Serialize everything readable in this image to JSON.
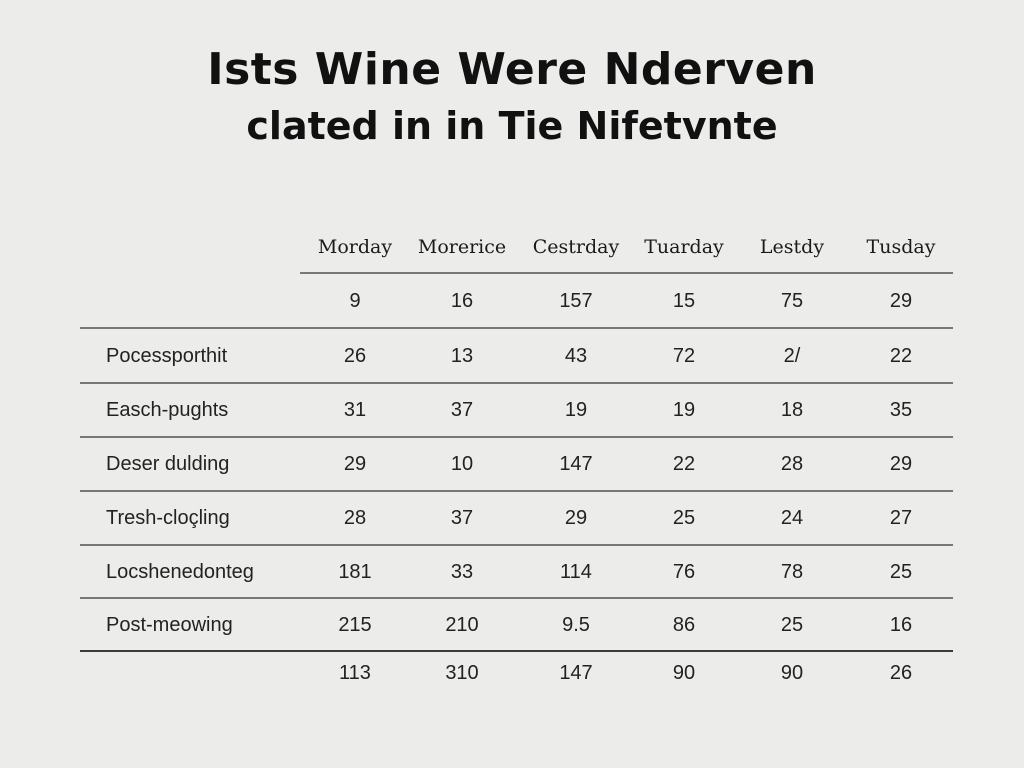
{
  "chart_data": {
    "type": "table",
    "title_lines": [
      "Ists Wine Were Nderven",
      "clated in in Tie Nifetvnte"
    ],
    "columns": [
      "Morday",
      "Morerice",
      "Cestrday",
      "Tuarday",
      "Lestdy",
      "Tusday"
    ],
    "rows": [
      {
        "label": "",
        "values": [
          "9",
          "16",
          "157",
          "15",
          "75",
          "29"
        ]
      },
      {
        "label": "Pocessporthit",
        "values": [
          "26",
          "13",
          "43",
          "72",
          "2/",
          "22"
        ]
      },
      {
        "label": "Easch-pughts",
        "values": [
          "31",
          "37",
          "19",
          "19",
          "18",
          "35"
        ]
      },
      {
        "label": "Deser dulding",
        "values": [
          "29",
          "10",
          "147",
          "22",
          "28",
          "29"
        ]
      },
      {
        "label": "Tresh-cloçling",
        "values": [
          "28",
          "37",
          "29",
          "25",
          "24",
          "27"
        ]
      },
      {
        "label": "Locshenedonteg",
        "values": [
          "181",
          "33",
          "114",
          "76",
          "78",
          "25"
        ]
      },
      {
        "label": "Post-meowing",
        "values": [
          "215",
          "210",
          "9.5",
          "86",
          "25",
          "16"
        ]
      },
      {
        "label": "",
        "values": [
          "113",
          "310",
          "147",
          "90",
          "90",
          "26"
        ]
      }
    ]
  }
}
